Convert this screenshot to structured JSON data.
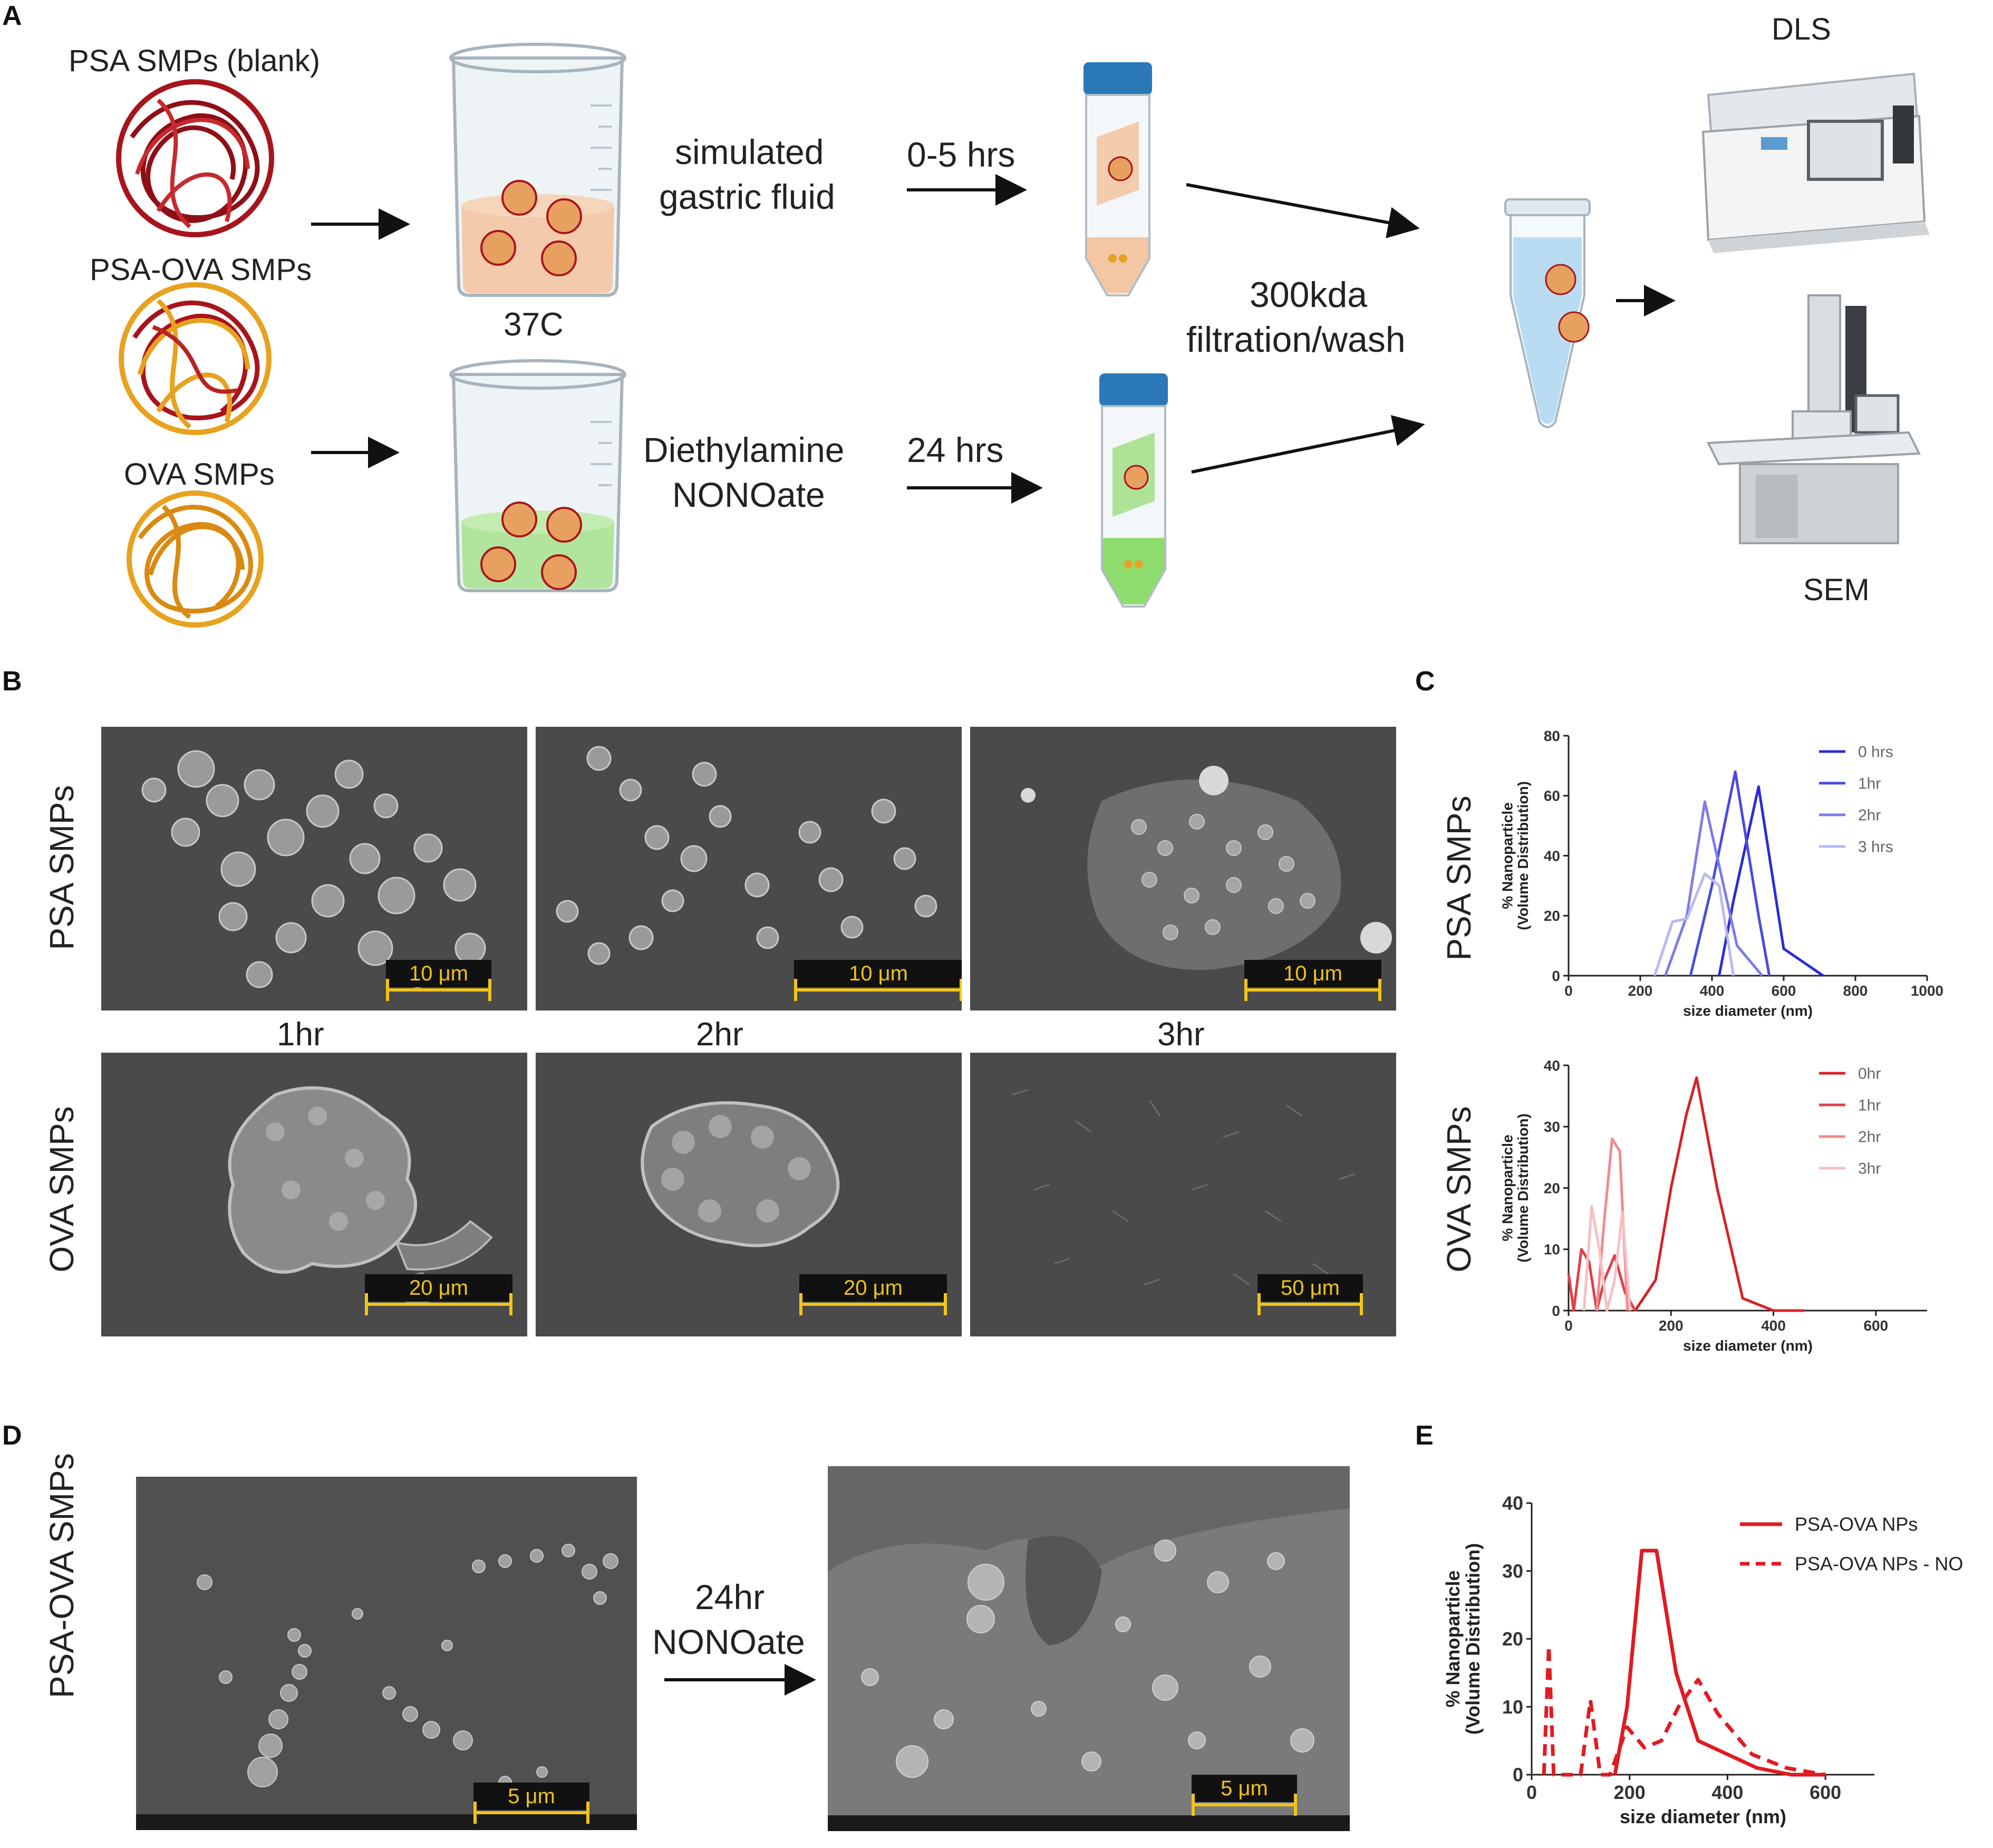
{
  "panels": {
    "a": "A",
    "b": "B",
    "c": "C",
    "d": "D",
    "e": "E"
  },
  "panel_a": {
    "sample1": "PSA SMPs (blank)",
    "sample2": "PSA-OVA SMPs",
    "sample3": "OVA SMPs",
    "temp": "37C",
    "cond1_line1": "simulated",
    "cond1_line2": "gastric fluid",
    "cond1_time": "0-5 hrs",
    "cond2_line1": "Diethylamine",
    "cond2_line2": "NONOate",
    "cond2_time": "24 hrs",
    "filt_line1": "300kda",
    "filt_line2": "filtration/wash",
    "dls": "DLS",
    "sem": "SEM",
    "colors": {
      "psa": "#a8141c",
      "ova": "#e8a21f",
      "gastric": "#f3c7a4",
      "nonoate": "#a6e08c",
      "cap": "#2a78b8",
      "tube": "#b9dcf2"
    }
  },
  "panel_b": {
    "row1_label": "PSA SMPs",
    "row2_label": "OVA SMPs",
    "time_labels": [
      "1hr",
      "2hr",
      "3hr"
    ],
    "scalebars_row1": [
      "10 μm",
      "10 μm",
      "10 μm"
    ],
    "scalebars_row2": [
      "20 μm",
      "20 μm",
      "50 μm"
    ]
  },
  "panel_d": {
    "row_label": "PSA-OVA SMPs",
    "arrow_line1": "24hr",
    "arrow_line2": "NONOate",
    "scalebars": [
      "5 μm",
      "5 μm"
    ]
  },
  "chart_data": [
    {
      "type": "line",
      "panel": "C",
      "row_label": "PSA SMPs",
      "ylabel_line1": "% Nanoparticle",
      "ylabel_line2": "(Volume Distribution)",
      "xlabel": "size diameter (nm)",
      "xlim": [
        0,
        1000
      ],
      "ylim": [
        0,
        80
      ],
      "xticks": [
        0,
        200,
        400,
        600,
        800,
        1000
      ],
      "yticks": [
        0,
        20,
        40,
        60,
        80
      ],
      "legend_position": "top-right",
      "series": [
        {
          "name": "0 hrs",
          "color": "#2b2bd6",
          "x": [
            420,
            460,
            530,
            600,
            710
          ],
          "y": [
            0,
            25,
            63,
            9,
            0
          ]
        },
        {
          "name": "1hr",
          "color": "#4a4ae0",
          "x": [
            340,
            400,
            465,
            530,
            560
          ],
          "y": [
            0,
            30,
            68,
            20,
            0
          ]
        },
        {
          "name": "2hr",
          "color": "#7c7ce8",
          "x": [
            270,
            330,
            380,
            470,
            540
          ],
          "y": [
            0,
            20,
            58,
            10,
            0
          ]
        },
        {
          "name": "3 hrs",
          "color": "#b8b8f2",
          "x": [
            240,
            290,
            330,
            380,
            420,
            460
          ],
          "y": [
            0,
            18,
            19,
            34,
            30,
            0
          ]
        }
      ]
    },
    {
      "type": "line",
      "panel": "C",
      "row_label": "OVA SMPs",
      "ylabel_line1": "% Nanoparticle",
      "ylabel_line2": "(Volume Distribution)",
      "xlabel": "size diameter (nm)",
      "xlim": [
        0,
        700
      ],
      "ylim": [
        0,
        40
      ],
      "xticks": [
        0,
        200,
        400,
        600
      ],
      "yticks": [
        0,
        10,
        20,
        30,
        40
      ],
      "legend_position": "top-right",
      "series": [
        {
          "name": "0hr",
          "color": "#d81f26",
          "x": [
            130,
            170,
            200,
            230,
            250,
            290,
            340,
            400,
            460
          ],
          "y": [
            0,
            5,
            20,
            32,
            38,
            20,
            2,
            0,
            0
          ]
        },
        {
          "name": "1hr",
          "color": "#e04048",
          "x": [
            0,
            10,
            25,
            40,
            55,
            70,
            90,
            110,
            130
          ],
          "y": [
            6,
            0,
            10,
            8,
            0,
            5,
            9,
            3,
            0
          ]
        },
        {
          "name": "2hr",
          "color": "#f08a8f",
          "x": [
            55,
            70,
            85,
            100,
            115
          ],
          "y": [
            0,
            15,
            28,
            26,
            0
          ]
        },
        {
          "name": "3hr",
          "color": "#f6c0c2",
          "x": [
            30,
            45,
            60,
            75,
            90,
            105,
            120
          ],
          "y": [
            0,
            17,
            10,
            0,
            5,
            16,
            0
          ]
        }
      ]
    },
    {
      "type": "line",
      "panel": "E",
      "ylabel_line1": "% Nanoparticle",
      "ylabel_line2": "(Volume Distribution)",
      "xlabel": "size diameter (nm)",
      "xlim": [
        0,
        700
      ],
      "ylim": [
        0,
        40
      ],
      "xticks": [
        0,
        200,
        400,
        600
      ],
      "yticks": [
        0,
        10,
        20,
        30,
        40
      ],
      "legend_position": "top-right",
      "series": [
        {
          "name": "PSA-OVA NPs",
          "color": "#e01b22",
          "dash": false,
          "x": [
            170,
            195,
            225,
            255,
            295,
            340,
            400,
            460,
            530,
            600
          ],
          "y": [
            0,
            10,
            33,
            33,
            15,
            5,
            3,
            1,
            0,
            0
          ]
        },
        {
          "name": "PSA-OVA NPs - NO",
          "color": "#e01b22",
          "dash": true,
          "x": [
            25,
            35,
            45,
            70,
            100,
            120,
            140,
            160,
            195,
            230,
            265,
            300,
            340,
            380,
            450,
            520,
            600
          ],
          "y": [
            0,
            19,
            0,
            0,
            0,
            11,
            0,
            0,
            7,
            4,
            5,
            10,
            14,
            9,
            3,
            1,
            0
          ]
        }
      ]
    }
  ]
}
